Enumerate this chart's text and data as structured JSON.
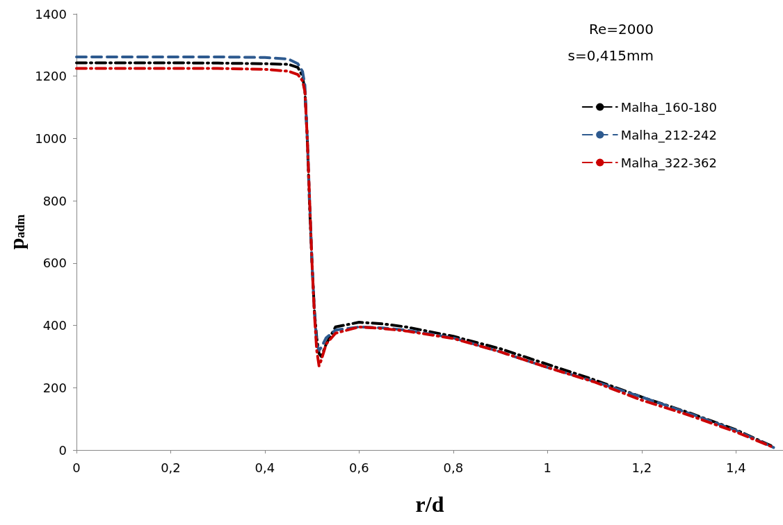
{
  "chart_data": {
    "type": "line",
    "xlabel": "r/d",
    "ylabel": "p$_{adm}$",
    "annotations": [
      "Re=2000",
      "s=0,415mm"
    ],
    "x": [
      0,
      0.1,
      0.2,
      0.3,
      0.4,
      0.45,
      0.47,
      0.48,
      0.485,
      0.49,
      0.495,
      0.5,
      0.505,
      0.51,
      0.515,
      0.52,
      0.53,
      0.55,
      0.6,
      0.65,
      0.7,
      0.8,
      0.9,
      1,
      1.1,
      1.2,
      1.3,
      1.4,
      1.48
    ],
    "series": [
      {
        "name": "Malha_160-180",
        "color": "#000000",
        "line_style": "dashdot",
        "values": [
          1243,
          1243,
          1243,
          1242,
          1240,
          1238,
          1228,
          1200,
          1150,
          1000,
          780,
          600,
          450,
          360,
          310,
          300,
          340,
          395,
          410,
          405,
          395,
          365,
          325,
          275,
          225,
          170,
          120,
          65,
          10
        ]
      },
      {
        "name": "Malha_212-242",
        "color": "#2e5a8f",
        "line_style": "dashed",
        "values": [
          1262,
          1262,
          1262,
          1262,
          1260,
          1255,
          1240,
          1215,
          1170,
          1000,
          800,
          600,
          450,
          340,
          320,
          330,
          360,
          385,
          395,
          392,
          385,
          360,
          315,
          265,
          220,
          170,
          118,
          63,
          8
        ]
      },
      {
        "name": "Malha_322-362",
        "color": "#cc0000",
        "line_style": "dashdot",
        "values": [
          1225,
          1225,
          1225,
          1225,
          1222,
          1216,
          1205,
          1185,
          1150,
          1000,
          800,
          600,
          440,
          320,
          270,
          290,
          340,
          375,
          395,
          390,
          382,
          358,
          315,
          265,
          218,
          160,
          112,
          58,
          8
        ]
      }
    ],
    "xlim": [
      0,
      1.5
    ],
    "xticks": [
      0,
      {
        "value": 0.2,
        "label": "0,2"
      },
      {
        "value": 0.4,
        "label": "0,4"
      },
      {
        "value": 0.6,
        "label": "0,6"
      },
      {
        "value": 0.8,
        "label": "0,8"
      },
      1,
      {
        "value": 1.2,
        "label": "1,2"
      },
      {
        "value": 1.4,
        "label": "1,4"
      }
    ],
    "ylim": [
      0,
      1400
    ],
    "yticks": [
      0,
      200,
      400,
      600,
      800,
      1000,
      1200,
      1400
    ],
    "grid": false,
    "legend": "right",
    "marker": "none"
  }
}
